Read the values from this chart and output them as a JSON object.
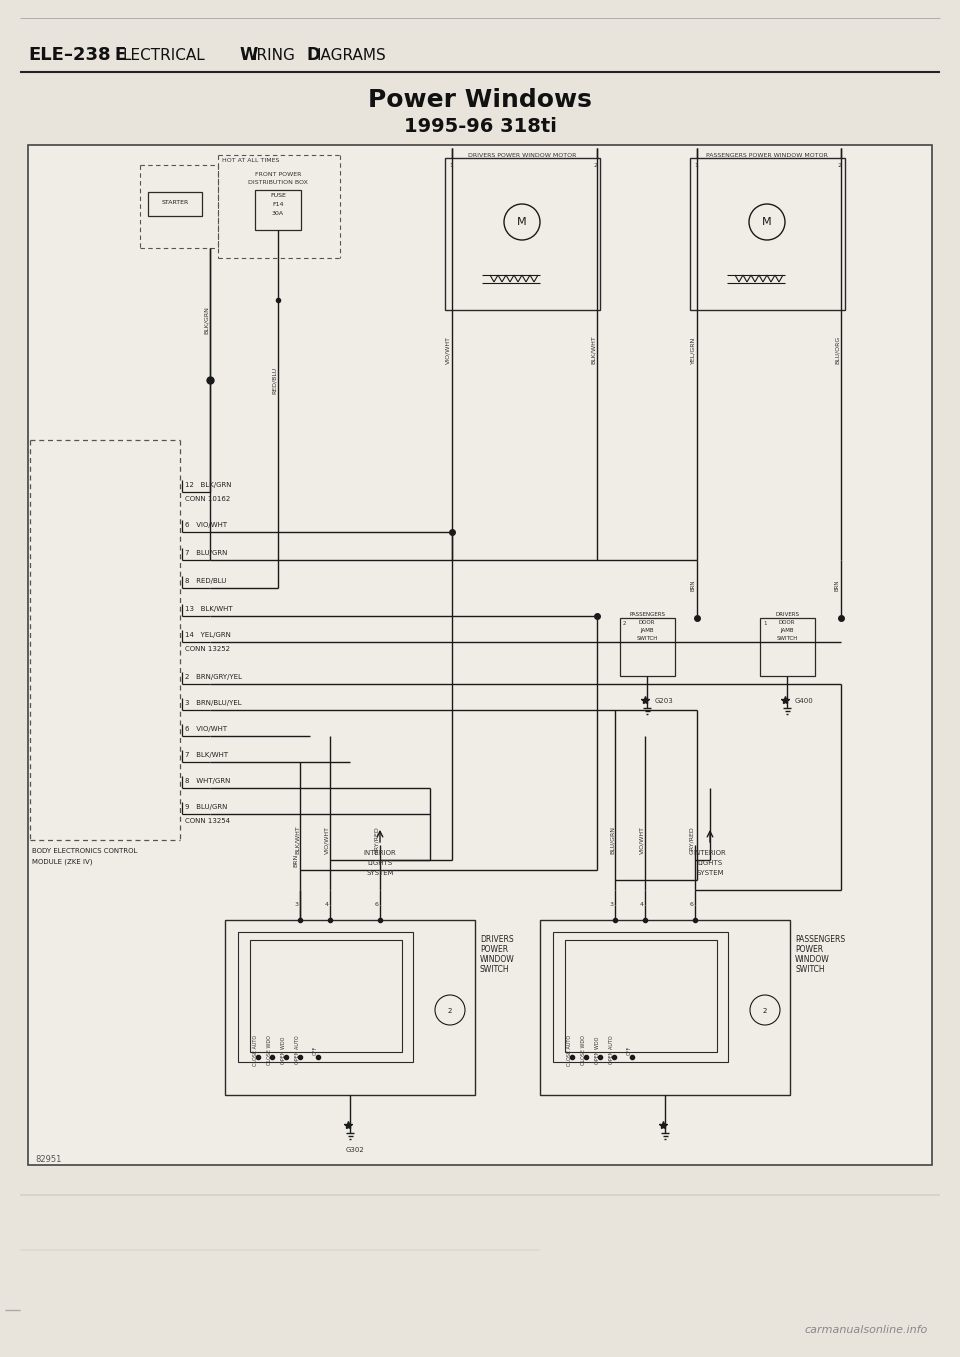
{
  "bg_color": "#e8e4dc",
  "page_bg": "#e8e4dc",
  "diagram_bg": "#f0ede6",
  "wire_color": "#1a1a1a",
  "box_edge_color": "#2a2a2a",
  "header_text_1": "ELE–238",
  "header_text_2": "E",
  "header_text_3": "LECTRICAL",
  "header_text_4": "W",
  "header_text_5": "IRING",
  "header_text_6": "D",
  "header_text_7": "IAGRAMS",
  "title": "Power Windows",
  "subtitle": "1995-96 318ti",
  "page_number": "82951",
  "watermark": "carmanualsonline.info",
  "conn_pins_top": [
    [
      12,
      "BLK/GRN",
      "CONN 10162"
    ],
    [
      6,
      "VIO/WHT",
      null
    ],
    [
      7,
      "BLU/GRN",
      null
    ],
    [
      8,
      "RED/BLU",
      null
    ],
    [
      13,
      "BLK/WHT",
      null
    ],
    [
      14,
      "YEL/GRN",
      "CONN 13252"
    ]
  ],
  "conn_pins_bot": [
    [
      2,
      "BRN/GRY/YEL",
      null
    ],
    [
      3,
      "BRN/BLU/YEL",
      null
    ],
    [
      6,
      "VIO/WHT",
      null
    ],
    [
      7,
      "BLK/WHT",
      null
    ],
    [
      8,
      "WHT/GRN",
      null
    ],
    [
      9,
      "BLU/GRN",
      "CONN 13254"
    ]
  ]
}
